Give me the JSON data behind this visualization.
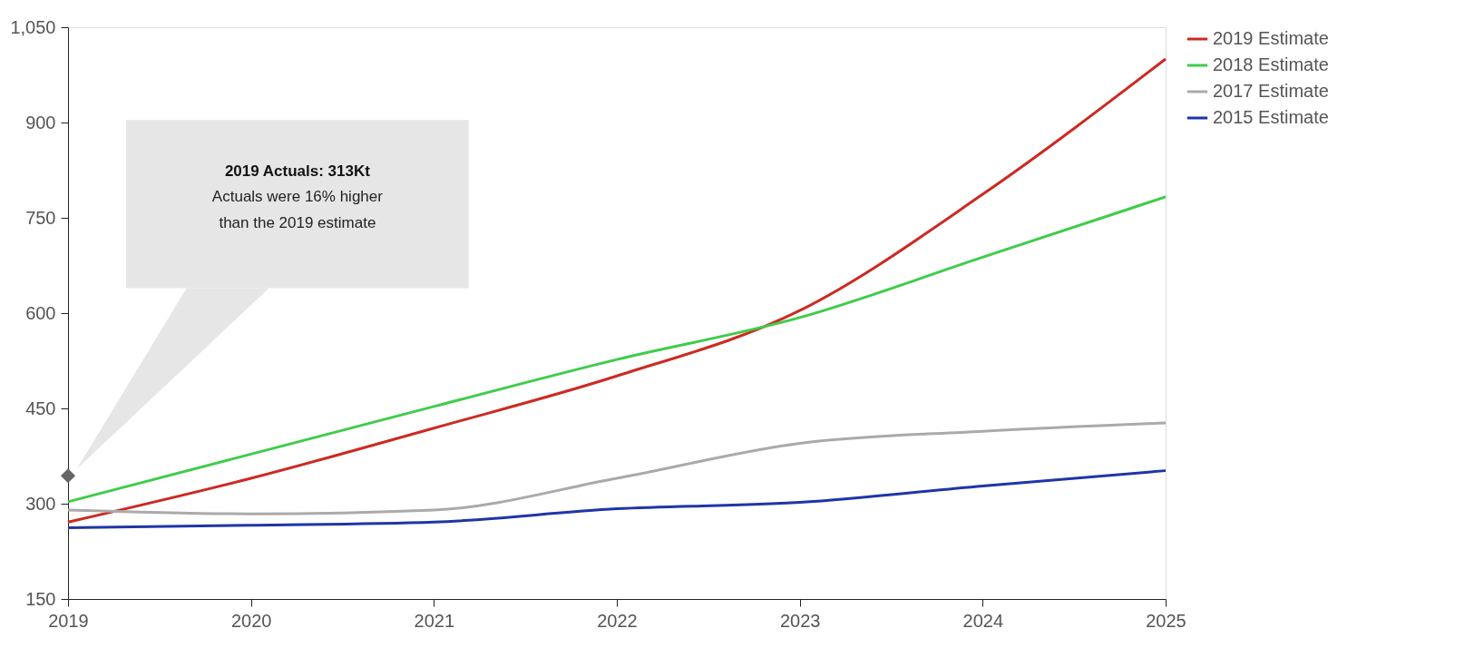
{
  "chart_data": {
    "type": "line",
    "x": [
      2019,
      2020,
      2021,
      2022,
      2023,
      2024,
      2025
    ],
    "series": [
      {
        "name": "2019 Estimate",
        "color": "#cc2a22",
        "values": [
          271,
          340,
          419,
          501,
          604,
          787,
          1000
        ]
      },
      {
        "name": "2018 Estimate",
        "color": "#3fcc4a",
        "values": [
          303,
          378,
          453,
          527,
          593,
          688,
          783
        ]
      },
      {
        "name": "2017 Estimate",
        "color": "#aaaaaa",
        "values": [
          290,
          284,
          290,
          340,
          395,
          414,
          427
        ]
      },
      {
        "name": "2015 Estimate",
        "color": "#1f35a8",
        "values": [
          262,
          266,
          271,
          292,
          302,
          328,
          352
        ]
      },
      {
        "type": "scatter",
        "marker": "diamond",
        "color": "#666666",
        "x": [
          2019
        ],
        "values": [
          344
        ]
      }
    ],
    "xlim": [
      2019,
      2025
    ],
    "xticks": [
      2019,
      2020,
      2021,
      2022,
      2023,
      2024,
      2025
    ],
    "ylim": [
      150,
      1050
    ],
    "yticks": [
      150,
      300,
      450,
      600,
      750,
      900,
      {
        "value": 1050,
        "label": "1,050"
      }
    ],
    "annotations": [
      "2019 Actuals: 313Kt",
      "Actuals were 16% higher than the 2019 estimate"
    ],
    "legend": "top right",
    "grid": false,
    "marker": "none",
    "line_style": "solid"
  }
}
